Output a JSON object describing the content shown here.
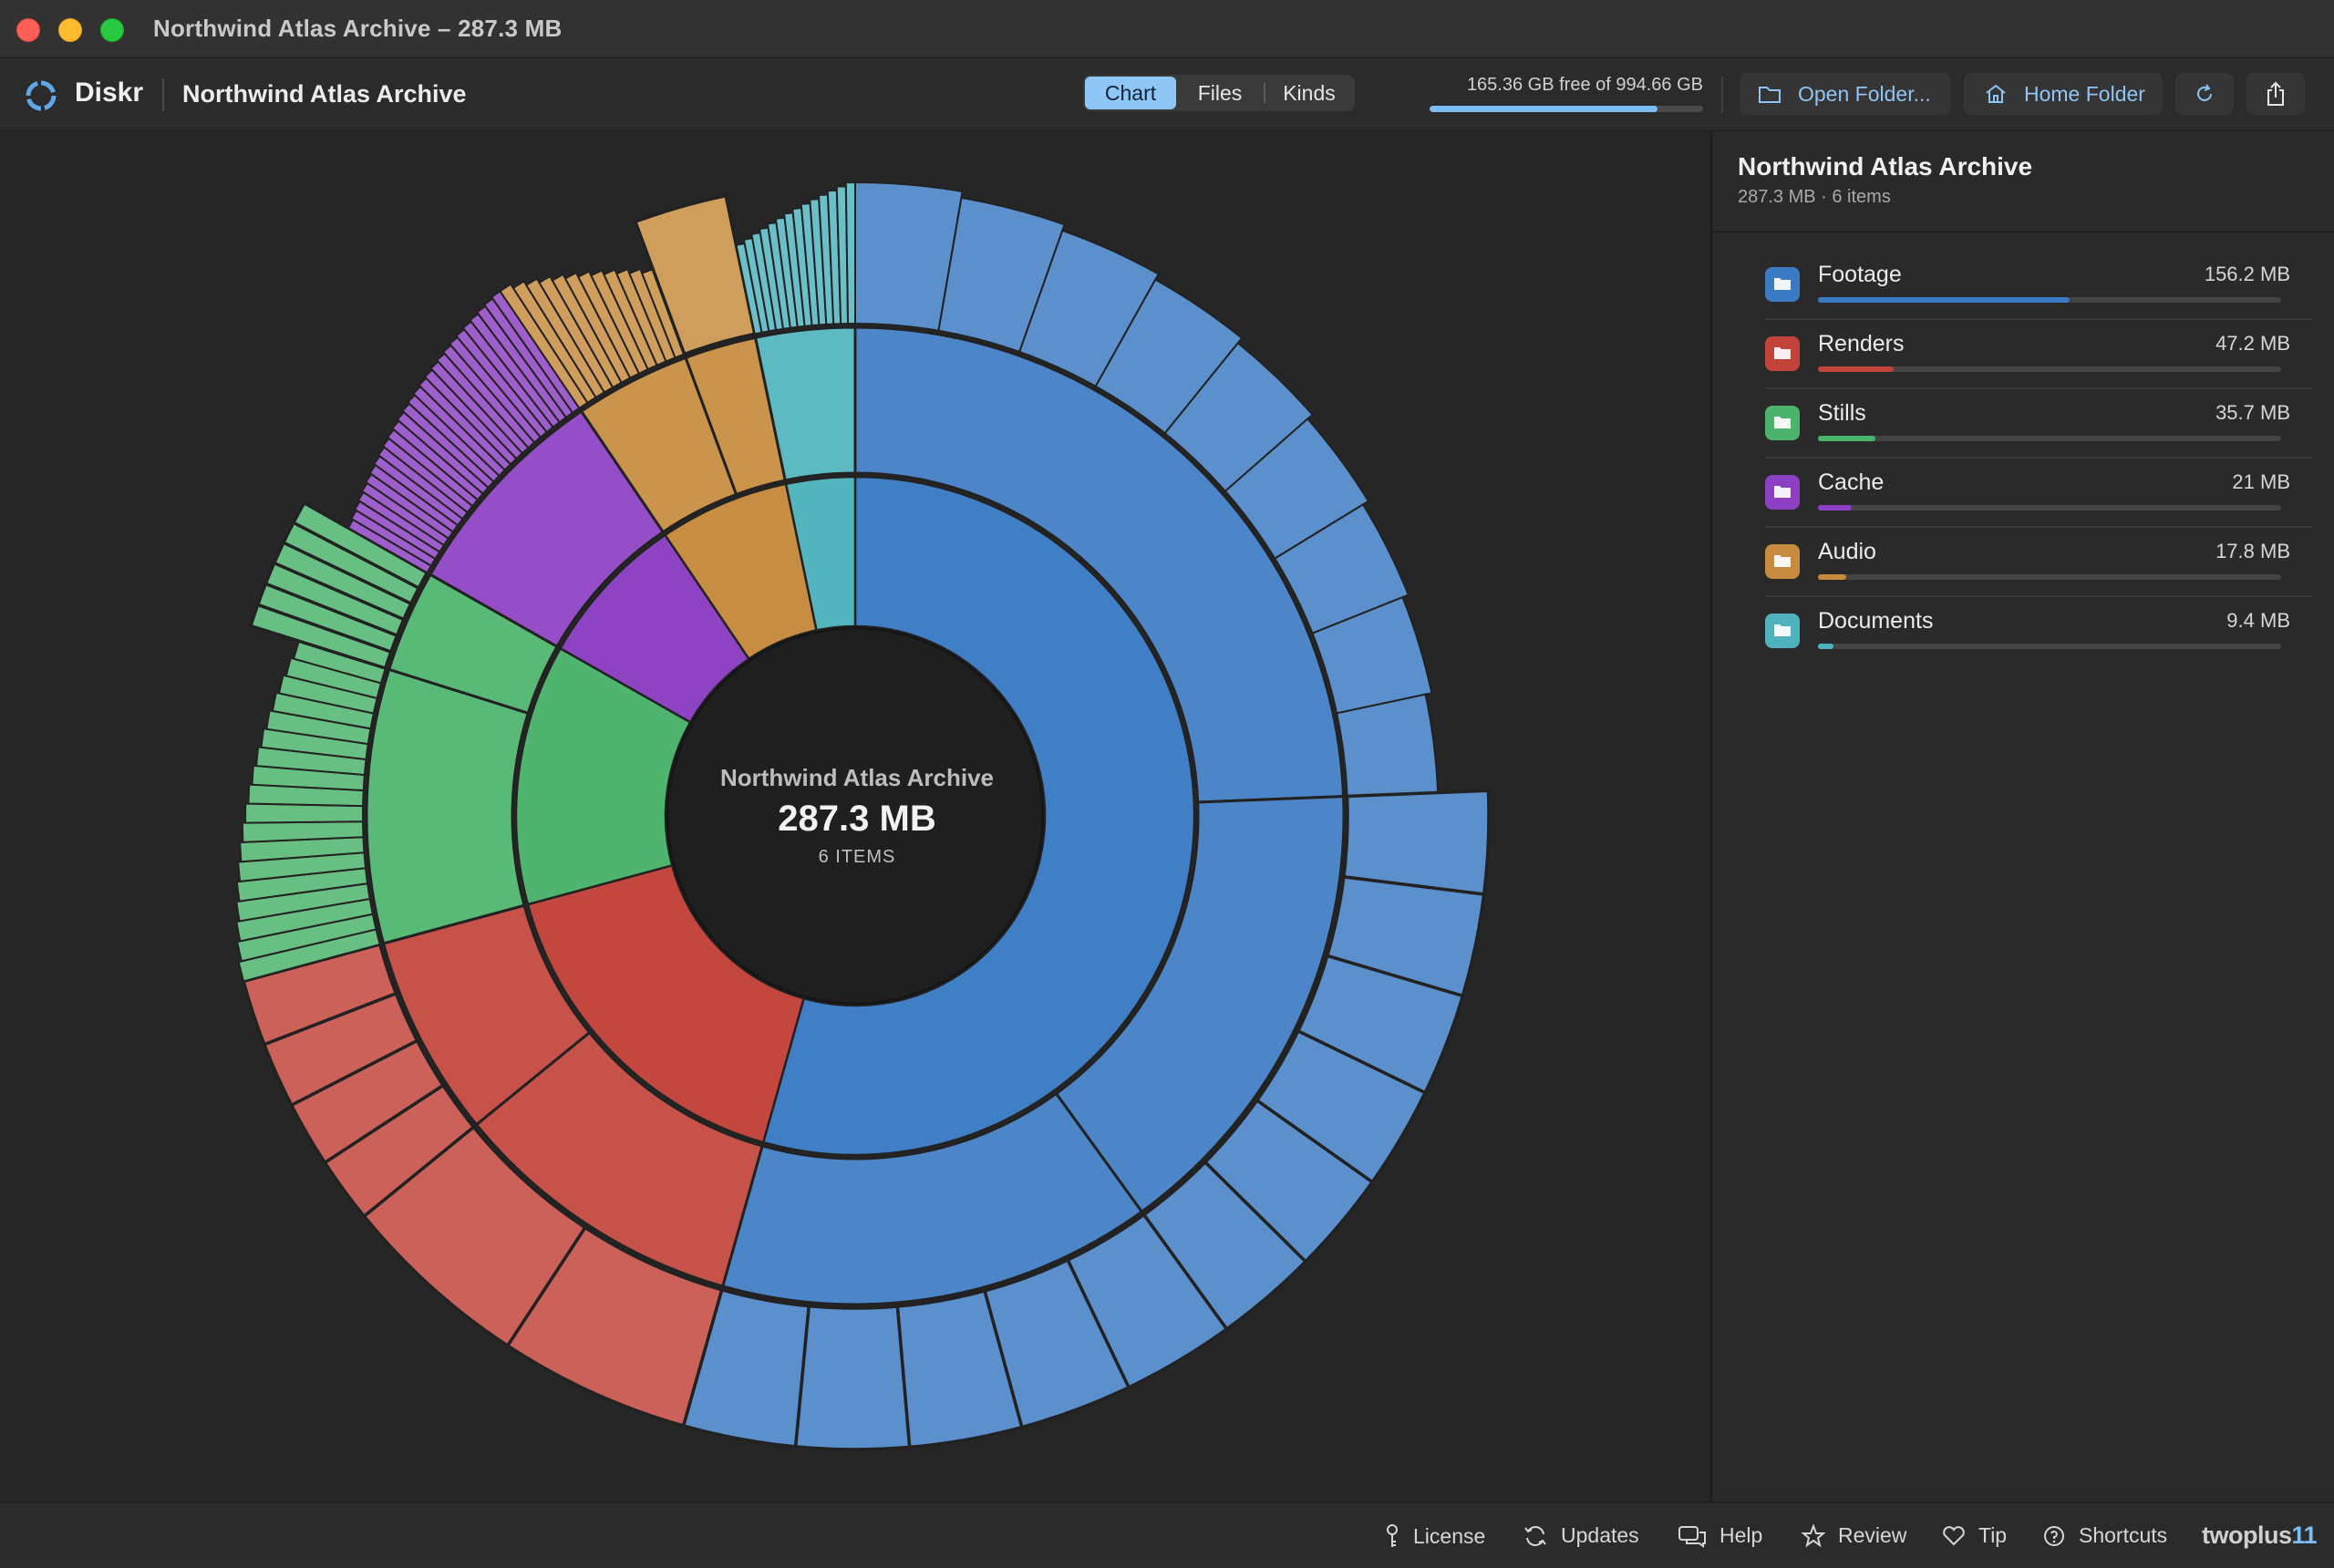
{
  "window": {
    "title": "Northwind Atlas Archive – 287.3 MB"
  },
  "toolbar": {
    "app_name": "Diskr",
    "folder_title": "Northwind Atlas Archive",
    "view_tabs": [
      "Chart",
      "Files",
      "Kinds"
    ],
    "active_tab": "Chart",
    "disk_text": "165.36 GB free of 994.66 GB",
    "disk_used_fraction": 0.834,
    "open_folder_label": "Open Folder...",
    "home_folder_label": "Home Folder",
    "refresh_icon": "refresh-icon",
    "share_icon": "share-icon"
  },
  "center": {
    "title": "Northwind Atlas Archive",
    "size": "287.3 MB",
    "items": "6 ITEMS"
  },
  "sidebar": {
    "title": "Northwind Atlas Archive",
    "subtitle": "287.3 MB · 6 items",
    "items": [
      {
        "name": "Footage",
        "size": "156.2 MB",
        "fraction": 0.544,
        "color": "#3c7bc4"
      },
      {
        "name": "Renders",
        "size": "47.2 MB",
        "fraction": 0.164,
        "color": "#c2433a"
      },
      {
        "name": "Stills",
        "size": "35.7 MB",
        "fraction": 0.124,
        "color": "#4bb36b"
      },
      {
        "name": "Cache",
        "size": "21 MB",
        "fraction": 0.073,
        "color": "#8c3fc2"
      },
      {
        "name": "Audio",
        "size": "17.8 MB",
        "fraction": 0.062,
        "color": "#c68b3e"
      },
      {
        "name": "Documents",
        "size": "9.4 MB",
        "fraction": 0.033,
        "color": "#4fb3bd"
      }
    ]
  },
  "chart_data": {
    "type": "sunburst",
    "total_mb": 287.3,
    "slices": [
      {
        "name": "Footage",
        "value": 156.2,
        "color": "#3c7bc4",
        "children": [
          {
            "value": 70,
            "children_count": 9
          },
          {
            "value": 45,
            "children_count": 6
          },
          {
            "value": 41.2,
            "children_count": 5
          }
        ]
      },
      {
        "name": "Renders",
        "value": 47.2,
        "color": "#c2433a",
        "children": [
          {
            "value": 28,
            "children_count": 2
          },
          {
            "value": 19.2,
            "children_count": 4
          }
        ]
      },
      {
        "name": "Stills",
        "value": 35.7,
        "color": "#4bb36b",
        "children": [
          {
            "value": 26,
            "children_count": 18
          },
          {
            "value": 9.7,
            "children_count": 6
          }
        ]
      },
      {
        "name": "Cache",
        "value": 21,
        "color": "#8c3fc2",
        "children": [
          {
            "value": 21,
            "children_count": 28
          }
        ]
      },
      {
        "name": "Audio",
        "value": 17.8,
        "color": "#c68b3e",
        "children": [
          {
            "value": 11,
            "children_count": 12
          },
          {
            "value": 6.8,
            "children_count": 1
          }
        ]
      },
      {
        "name": "Documents",
        "value": 9.4,
        "color": "#4fb3bd",
        "children": [
          {
            "value": 9.4,
            "children_count": 14
          }
        ]
      }
    ]
  },
  "statusbar": {
    "items": [
      {
        "label": "License",
        "icon": "key-icon"
      },
      {
        "label": "Updates",
        "icon": "sync-icon"
      },
      {
        "label": "Help",
        "icon": "chat-icon"
      },
      {
        "label": "Review",
        "icon": "star-icon"
      },
      {
        "label": "Tip",
        "icon": "heart-icon"
      },
      {
        "label": "Shortcuts",
        "icon": "question-icon"
      }
    ],
    "brand_main": "twoplus",
    "brand_accent": "11"
  }
}
